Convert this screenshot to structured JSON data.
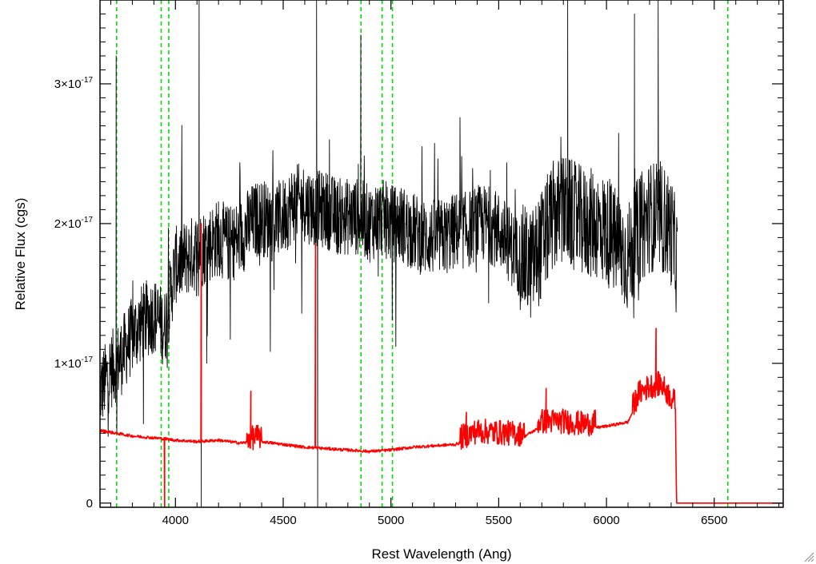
{
  "chart_data": {
    "type": "line",
    "title": "",
    "xlabel": "Rest Wavelength (Ang)",
    "ylabel": "Relative Flux (cgs)",
    "xlim": [
      3650,
      6820
    ],
    "ylim": [
      -3e-19,
      3.6e-17
    ],
    "x_ticks": [
      4000,
      4500,
      5000,
      5500,
      6000,
      6500
    ],
    "x_tick_labels": [
      "4000",
      "4500",
      "5000",
      "5500",
      "6000",
      "6500"
    ],
    "y_ticks": [
      0,
      1e-17,
      2e-17,
      3e-17
    ],
    "y_tick_labels": [
      {
        "base": "0",
        "exp": ""
      },
      {
        "base": "1×10",
        "exp": "-17"
      },
      {
        "base": "2×10",
        "exp": "-17"
      },
      {
        "base": "3×10",
        "exp": "-17"
      }
    ],
    "grid": false,
    "reference_lines": {
      "color": "#00dd00",
      "style": "dashed",
      "x": [
        3727,
        3934,
        3969,
        4861,
        4959,
        5007,
        6563
      ]
    },
    "series": [
      {
        "color": "#000000",
        "x_range": [
          3650,
          6330
        ],
        "points": [
          [
            3650,
            8e-18
          ],
          [
            3700,
            9.5e-18
          ],
          [
            3750,
            1.05e-17
          ],
          [
            3800,
            1.2e-17
          ],
          [
            3850,
            1.3e-17
          ],
          [
            3900,
            1.35e-17
          ],
          [
            3950,
            1.25e-17
          ],
          [
            4000,
            1.7e-17
          ],
          [
            4050,
            1.75e-17
          ],
          [
            4100,
            1.8e-17
          ],
          [
            4150,
            1.85e-17
          ],
          [
            4200,
            1.9e-17
          ],
          [
            4250,
            1.85e-17
          ],
          [
            4300,
            1.9e-17
          ],
          [
            4350,
            2e-17
          ],
          [
            4400,
            2.05e-17
          ],
          [
            4450,
            2e-17
          ],
          [
            4500,
            2.05e-17
          ],
          [
            4550,
            2.15e-17
          ],
          [
            4600,
            2.15e-17
          ],
          [
            4650,
            2.1e-17
          ],
          [
            4700,
            2.1e-17
          ],
          [
            4750,
            2.05e-17
          ],
          [
            4800,
            2.05e-17
          ],
          [
            4850,
            2.05e-17
          ],
          [
            4900,
            2e-17
          ],
          [
            4950,
            2.05e-17
          ],
          [
            5000,
            2e-17
          ],
          [
            5050,
            2e-17
          ],
          [
            5100,
            1.95e-17
          ],
          [
            5150,
            1.9e-17
          ],
          [
            5200,
            1.9e-17
          ],
          [
            5250,
            1.9e-17
          ],
          [
            5300,
            1.95e-17
          ],
          [
            5350,
            1.95e-17
          ],
          [
            5400,
            2e-17
          ],
          [
            5450,
            2e-17
          ],
          [
            5500,
            1.95e-17
          ],
          [
            5550,
            1.85e-17
          ],
          [
            5600,
            1.75e-17
          ],
          [
            5650,
            1.7e-17
          ],
          [
            5700,
            1.85e-17
          ],
          [
            5750,
            2.05e-17
          ],
          [
            5800,
            2.1e-17
          ],
          [
            5850,
            2.05e-17
          ],
          [
            5900,
            2e-17
          ],
          [
            5950,
            2e-17
          ],
          [
            6000,
            1.95e-17
          ],
          [
            6050,
            1.85e-17
          ],
          [
            6100,
            1.75e-17
          ],
          [
            6150,
            1.95e-17
          ],
          [
            6200,
            2.05e-17
          ],
          [
            6250,
            2.05e-17
          ],
          [
            6300,
            1.95e-17
          ],
          [
            6330,
            1.7e-17
          ]
        ],
        "spikes": [
          [
            3725,
            3.2e-17
          ],
          [
            4110,
            3.6e-17
          ],
          [
            4120,
            -3e-19
          ],
          [
            4655,
            3.6e-17
          ],
          [
            4660,
            -3e-19
          ],
          [
            4860,
            3.35e-17
          ],
          [
            5820,
            3.6e-17
          ],
          [
            6130,
            3.5e-17
          ],
          [
            6240,
            3.6e-17
          ]
        ]
      },
      {
        "color": "#ff0000",
        "x_range": [
          3650,
          6820
        ],
        "points": [
          [
            3650,
            5.2e-18
          ],
          [
            3800,
            4.8e-18
          ],
          [
            3950,
            4.6e-18
          ],
          [
            4000,
            4.5e-18
          ],
          [
            4100,
            4.4e-18
          ],
          [
            4200,
            4.5e-18
          ],
          [
            4300,
            4.3e-18
          ],
          [
            4400,
            4.4e-18
          ],
          [
            4500,
            4.2e-18
          ],
          [
            4600,
            4e-18
          ],
          [
            4700,
            3.9e-18
          ],
          [
            4800,
            3.8e-18
          ],
          [
            4900,
            3.7e-18
          ],
          [
            5000,
            3.8e-18
          ],
          [
            5100,
            4e-18
          ],
          [
            5200,
            4.1e-18
          ],
          [
            5300,
            4.2e-18
          ],
          [
            5400,
            4.8e-18
          ],
          [
            5500,
            4.7e-18
          ],
          [
            5600,
            4.6e-18
          ],
          [
            5700,
            5.5e-18
          ],
          [
            5800,
            5.5e-18
          ],
          [
            5900,
            5.3e-18
          ],
          [
            6000,
            5.5e-18
          ],
          [
            6100,
            5.8e-18
          ],
          [
            6150,
            7.5e-18
          ],
          [
            6200,
            8e-18
          ],
          [
            6250,
            8.2e-18
          ],
          [
            6320,
            6.8e-18
          ],
          [
            6325,
            0.0
          ],
          [
            6820,
            0.0
          ]
        ],
        "spikes": [
          [
            3950,
            -3e-19
          ],
          [
            4120,
            2e-17
          ],
          [
            4350,
            8e-18
          ],
          [
            4650,
            1.85e-17
          ],
          [
            5350,
            6.5e-18
          ],
          [
            5720,
            8.2e-18
          ],
          [
            6230,
            1.25e-17
          ]
        ]
      }
    ]
  }
}
